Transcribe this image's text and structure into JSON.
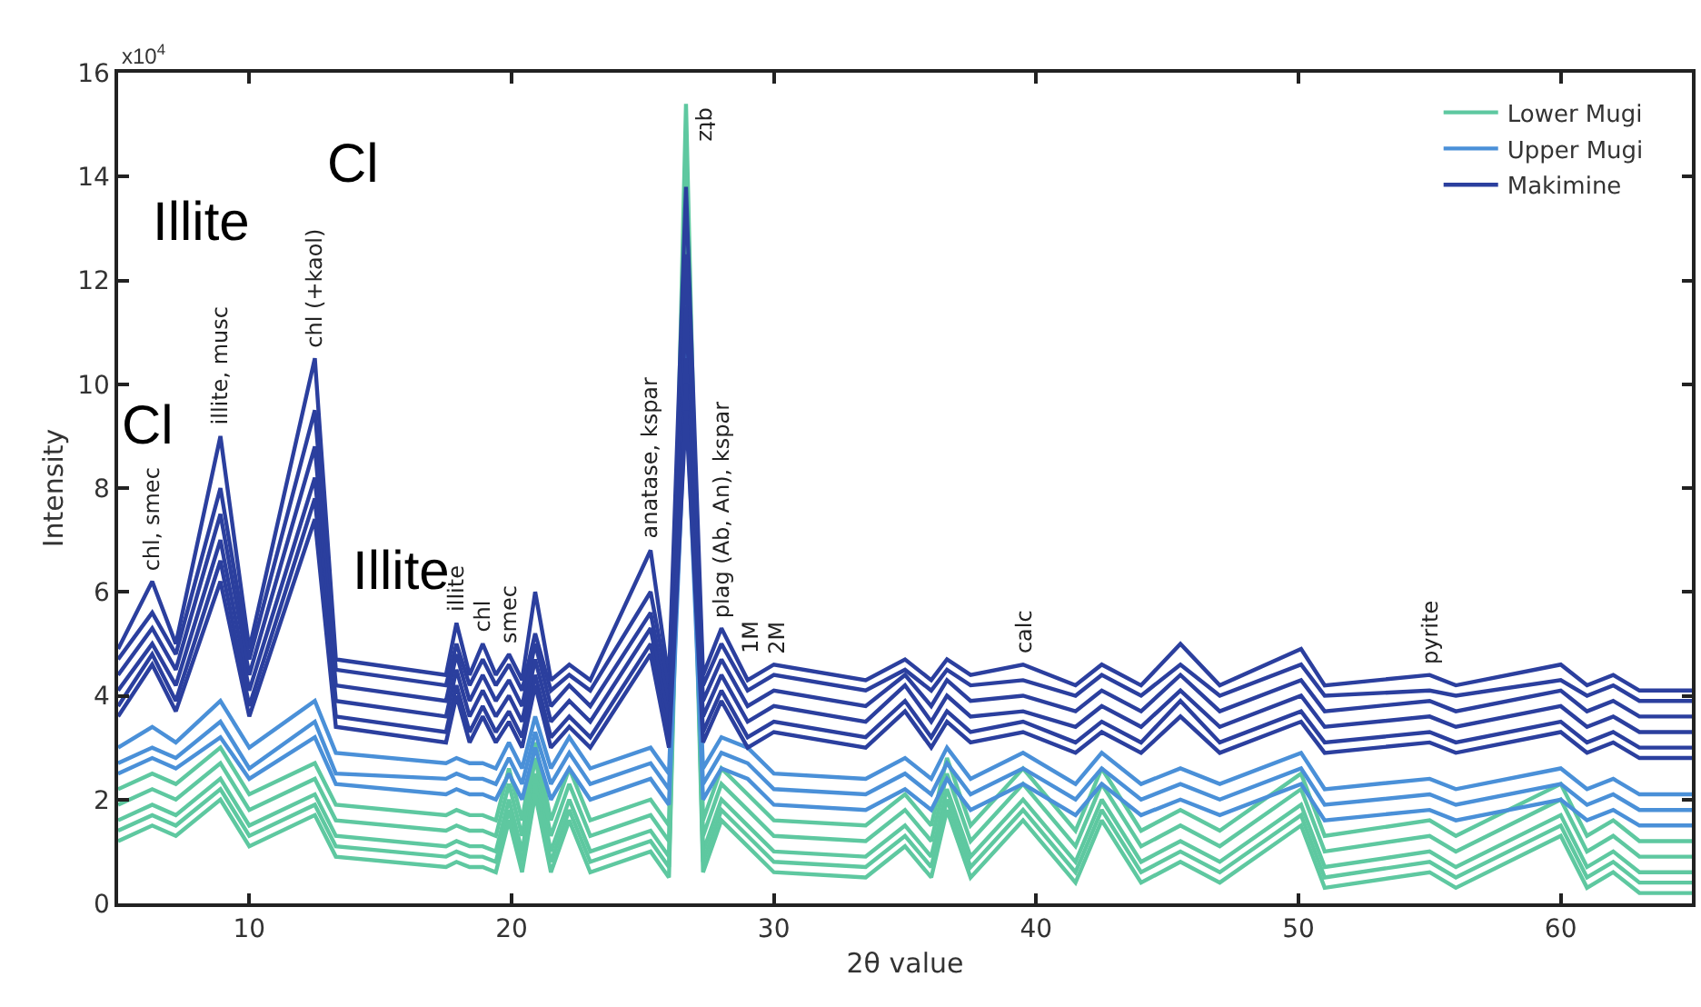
{
  "chart_data": {
    "type": "line",
    "xlabel": "2θ value",
    "ylabel": "Intensity",
    "x": [
      5,
      6.3,
      7.2,
      8.9,
      10,
      12.5,
      13.3,
      17.5,
      17.9,
      18.4,
      18.9,
      19.4,
      19.9,
      20.4,
      20.9,
      21.5,
      22.2,
      23,
      25.3,
      26,
      26.65,
      27.3,
      28,
      29,
      30,
      33.5,
      35,
      36,
      36.6,
      37.5,
      39.5,
      41.5,
      42.5,
      44,
      45.5,
      47,
      50.1,
      51,
      55,
      56,
      60,
      61,
      62,
      63,
      65
    ],
    "xlim": [
      5,
      65
    ],
    "xticks": [
      10,
      20,
      30,
      40,
      50,
      60
    ],
    "ylim": [
      0,
      16
    ],
    "yticks": [
      0,
      2,
      4,
      6,
      8,
      10,
      12,
      14,
      16
    ],
    "legend": "top right",
    "marker": "none",
    "line_style": "solid",
    "series": [
      {
        "name": "Lower Mugi",
        "color": "#5ec8a0",
        "values": [
          2.2,
          2.5,
          2.3,
          3.0,
          2.1,
          2.7,
          1.9,
          1.7,
          1.8,
          1.7,
          1.7,
          1.6,
          2.6,
          1.6,
          3.1,
          1.6,
          2.6,
          1.6,
          2.0,
          1.5,
          15.4,
          1.6,
          2.6,
          2.1,
          1.6,
          1.5,
          2.1,
          1.5,
          2.8,
          1.5,
          2.6,
          1.4,
          2.6,
          1.4,
          1.8,
          1.4,
          2.5,
          1.3,
          1.6,
          1.3,
          2.3,
          1.3,
          1.6,
          1.2,
          1.2
        ]
      },
      {
        "color": "#5ec8a0",
        "values": [
          1.9,
          2.2,
          2.0,
          2.7,
          1.8,
          2.4,
          1.6,
          1.4,
          1.5,
          1.4,
          1.4,
          1.3,
          2.3,
          1.3,
          2.8,
          1.3,
          2.3,
          1.3,
          1.7,
          1.2,
          14.5,
          1.3,
          2.3,
          1.8,
          1.3,
          1.2,
          1.8,
          1.2,
          2.5,
          1.2,
          2.3,
          1.1,
          2.3,
          1.1,
          1.5,
          1.1,
          2.2,
          1.0,
          1.3,
          1.0,
          2.0,
          1.0,
          1.3,
          0.9,
          0.9
        ]
      },
      {
        "color": "#5ec8a0",
        "values": [
          1.6,
          1.9,
          1.7,
          2.4,
          1.5,
          2.1,
          1.3,
          1.1,
          1.2,
          1.1,
          1.1,
          1.0,
          2.0,
          1.0,
          2.5,
          1.0,
          2.0,
          1.0,
          1.4,
          0.9,
          14.0,
          1.0,
          2.0,
          1.5,
          1.0,
          0.9,
          1.5,
          0.9,
          2.2,
          0.9,
          2.0,
          0.8,
          2.0,
          0.8,
          1.2,
          0.8,
          1.9,
          0.7,
          1.0,
          0.7,
          1.7,
          0.7,
          1.0,
          0.6,
          0.6
        ]
      },
      {
        "color": "#5ec8a0",
        "values": [
          1.4,
          1.7,
          1.5,
          2.2,
          1.3,
          1.9,
          1.1,
          0.9,
          1.0,
          0.9,
          0.9,
          0.8,
          1.8,
          0.8,
          2.3,
          0.8,
          1.8,
          0.8,
          1.2,
          0.7,
          13.5,
          0.8,
          1.8,
          1.3,
          0.8,
          0.7,
          1.3,
          0.7,
          2.0,
          0.7,
          1.8,
          0.6,
          1.8,
          0.6,
          1.0,
          0.6,
          1.7,
          0.5,
          0.8,
          0.5,
          1.5,
          0.5,
          0.8,
          0.4,
          0.4
        ]
      },
      {
        "color": "#5ec8a0",
        "values": [
          1.2,
          1.5,
          1.3,
          2.0,
          1.1,
          1.7,
          0.9,
          0.7,
          0.8,
          0.7,
          0.7,
          0.6,
          1.6,
          0.6,
          2.1,
          0.6,
          1.6,
          0.6,
          1.0,
          0.5,
          13.0,
          0.6,
          1.6,
          1.1,
          0.6,
          0.5,
          1.1,
          0.5,
          1.8,
          0.5,
          1.6,
          0.4,
          1.6,
          0.4,
          0.8,
          0.4,
          1.5,
          0.3,
          0.6,
          0.3,
          1.3,
          0.3,
          0.6,
          0.2,
          0.2
        ]
      },
      {
        "name": "Upper Mugi",
        "color": "#4a90d8",
        "values": [
          3.0,
          3.4,
          3.1,
          3.9,
          3.0,
          3.9,
          2.9,
          2.7,
          2.8,
          2.7,
          2.7,
          2.6,
          3.1,
          2.6,
          3.6,
          2.6,
          3.2,
          2.6,
          3.0,
          2.5,
          11.0,
          2.6,
          3.2,
          3.0,
          2.5,
          2.4,
          2.8,
          2.4,
          3.0,
          2.4,
          2.9,
          2.3,
          2.9,
          2.3,
          2.6,
          2.3,
          2.9,
          2.2,
          2.4,
          2.2,
          2.6,
          2.2,
          2.4,
          2.1,
          2.1
        ]
      },
      {
        "color": "#4a90d8",
        "values": [
          2.7,
          3.0,
          2.8,
          3.5,
          2.6,
          3.5,
          2.5,
          2.4,
          2.5,
          2.4,
          2.4,
          2.3,
          2.8,
          2.3,
          3.3,
          2.3,
          2.9,
          2.3,
          2.7,
          2.2,
          10.5,
          2.3,
          2.9,
          2.7,
          2.2,
          2.1,
          2.5,
          2.1,
          2.7,
          2.1,
          2.6,
          2.0,
          2.6,
          2.0,
          2.3,
          2.0,
          2.6,
          1.9,
          2.1,
          1.9,
          2.3,
          1.9,
          2.1,
          1.8,
          1.8
        ]
      },
      {
        "color": "#4a90d8",
        "values": [
          2.5,
          2.8,
          2.6,
          3.2,
          2.4,
          3.2,
          2.3,
          2.1,
          2.2,
          2.1,
          2.1,
          2.0,
          2.5,
          2.0,
          3.0,
          2.0,
          2.6,
          2.0,
          2.4,
          1.9,
          10.0,
          2.0,
          2.6,
          2.4,
          1.9,
          1.8,
          2.2,
          1.8,
          2.4,
          1.8,
          2.3,
          1.7,
          2.3,
          1.7,
          2.0,
          1.7,
          2.3,
          1.6,
          1.8,
          1.6,
          2.0,
          1.6,
          1.8,
          1.5,
          1.5
        ]
      },
      {
        "name": "Makimine",
        "color": "#2b3f9e",
        "values": [
          4.9,
          6.2,
          5.0,
          9.0,
          4.9,
          10.5,
          4.7,
          4.4,
          5.4,
          4.4,
          5.0,
          4.4,
          4.8,
          4.3,
          6.0,
          4.3,
          4.6,
          4.3,
          6.8,
          4.3,
          13.8,
          4.4,
          5.3,
          4.3,
          4.6,
          4.3,
          4.7,
          4.3,
          4.7,
          4.4,
          4.6,
          4.2,
          4.6,
          4.2,
          5.0,
          4.2,
          4.9,
          4.2,
          4.4,
          4.2,
          4.6,
          4.2,
          4.4,
          4.1,
          4.1
        ]
      },
      {
        "color": "#2b3f9e",
        "values": [
          4.7,
          5.6,
          4.8,
          8.0,
          4.7,
          9.5,
          4.5,
          4.2,
          5.0,
          4.2,
          4.7,
          4.2,
          4.6,
          4.1,
          5.2,
          4.1,
          4.4,
          4.1,
          6.0,
          4.1,
          12.5,
          4.2,
          5.0,
          4.1,
          4.4,
          4.1,
          4.5,
          4.1,
          4.5,
          4.2,
          4.3,
          4.0,
          4.4,
          4.0,
          4.6,
          4.0,
          4.6,
          4.0,
          4.1,
          4.0,
          4.3,
          4.0,
          4.2,
          3.9,
          3.9
        ]
      },
      {
        "color": "#2b3f9e",
        "values": [
          4.4,
          5.3,
          4.5,
          7.5,
          4.4,
          8.8,
          4.2,
          3.9,
          4.8,
          3.9,
          4.4,
          3.9,
          4.3,
          3.8,
          5.0,
          3.8,
          4.2,
          3.8,
          5.6,
          3.8,
          11.5,
          3.9,
          4.7,
          3.8,
          4.1,
          3.8,
          4.4,
          3.8,
          4.3,
          3.9,
          4.0,
          3.7,
          4.1,
          3.7,
          4.4,
          3.7,
          4.3,
          3.7,
          3.9,
          3.7,
          4.1,
          3.7,
          3.9,
          3.6,
          3.6
        ]
      },
      {
        "color": "#2b3f9e",
        "values": [
          4.1,
          5.0,
          4.2,
          7.0,
          4.1,
          8.2,
          3.9,
          3.6,
          4.5,
          3.6,
          4.1,
          3.6,
          4.0,
          3.5,
          4.7,
          3.5,
          3.9,
          3.5,
          5.3,
          3.5,
          10.5,
          3.6,
          4.4,
          3.5,
          3.8,
          3.5,
          4.2,
          3.5,
          4.0,
          3.6,
          3.7,
          3.4,
          3.8,
          3.4,
          4.1,
          3.4,
          4.0,
          3.4,
          3.6,
          3.4,
          3.8,
          3.4,
          3.6,
          3.3,
          3.3
        ]
      },
      {
        "color": "#2b3f9e",
        "values": [
          3.8,
          4.8,
          3.9,
          6.6,
          3.8,
          7.8,
          3.6,
          3.3,
          4.2,
          3.3,
          3.8,
          3.3,
          3.7,
          3.2,
          4.4,
          3.2,
          3.6,
          3.2,
          5.0,
          3.2,
          10.0,
          3.3,
          4.1,
          3.2,
          3.5,
          3.2,
          3.9,
          3.2,
          3.7,
          3.3,
          3.5,
          3.1,
          3.5,
          3.1,
          3.9,
          3.1,
          3.7,
          3.1,
          3.3,
          3.1,
          3.5,
          3.1,
          3.3,
          3.0,
          3.0
        ]
      },
      {
        "color": "#2b3f9e",
        "values": [
          3.6,
          4.6,
          3.7,
          6.2,
          3.6,
          7.4,
          3.4,
          3.1,
          4.0,
          3.1,
          3.6,
          3.1,
          3.5,
          3.0,
          4.2,
          3.0,
          3.4,
          3.0,
          4.8,
          3.0,
          9.5,
          3.1,
          3.9,
          3.0,
          3.3,
          3.0,
          3.7,
          3.0,
          3.5,
          3.1,
          3.3,
          2.9,
          3.3,
          2.9,
          3.6,
          2.9,
          3.5,
          2.9,
          3.1,
          2.9,
          3.3,
          2.9,
          3.1,
          2.8,
          2.8
        ]
      }
    ],
    "annotations": [
      "x10$^{4}$",
      {
        "text": "chl, smec",
        "x": 6.3,
        "y": 6.2
      },
      {
        "text": "illite, musc",
        "x": 8.9,
        "y": 9.0
      },
      {
        "text": "chl (+kaol)",
        "x": 12.5,
        "y": 10.5
      },
      {
        "text": "illite",
        "x": 17.9,
        "y": 5.4
      },
      {
        "text": "chl",
        "x": 18.9,
        "y": 5.0
      },
      {
        "text": "smec",
        "x": 19.9,
        "y": 4.8
      },
      {
        "text": "anatase, kspar",
        "x": 25.3,
        "y": 6.8
      },
      {
        "text": "qtz",
        "x": 26.65,
        "y": 15.4
      },
      {
        "text": "plag (Ab, An), kspar",
        "x": 28.0,
        "y": 5.3
      },
      {
        "text": "1M",
        "x": 29.1,
        "y": 4.6
      },
      {
        "text": "2M",
        "x": 30.1,
        "y": 4.6
      },
      {
        "text": "calc",
        "x": 39.5,
        "y": 4.6
      },
      {
        "text": "pyrite",
        "x": 55,
        "y": 4.4
      },
      "Cl",
      "Illite",
      "Cl",
      "Illite"
    ]
  }
}
